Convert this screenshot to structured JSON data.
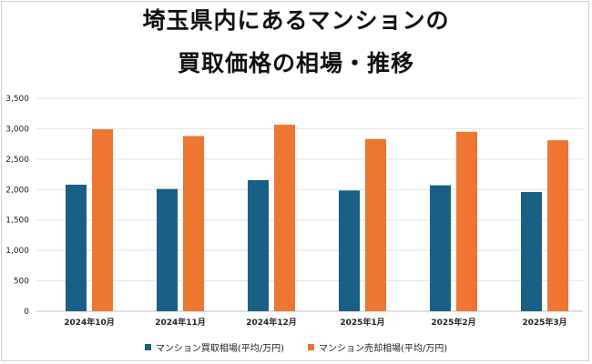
{
  "chart_data": {
    "type": "bar",
    "title_lines": [
      "埼玉県内にあるマンションの",
      "買取価格の相場・推移"
    ],
    "categories": [
      "2024年10月",
      "2024年11月",
      "2024年12月",
      "2025年1月",
      "2025年2月",
      "2025年3月"
    ],
    "series": [
      {
        "name": "マンション買取相場(平均/万円)",
        "color": "#1a5f85",
        "values": [
          2080,
          2010,
          2155,
          1985,
          2070,
          1960
        ]
      },
      {
        "name": "マンション売却相場(平均/万円)",
        "color": "#ee7633",
        "values": [
          2990,
          2880,
          3065,
          2830,
          2950,
          2810
        ]
      }
    ],
    "ylim": [
      0,
      3500
    ],
    "yticks": [
      "0",
      "500",
      "1,000",
      "1,500",
      "2,000",
      "2,500",
      "3,000",
      "3,500"
    ],
    "ytick_values": [
      0,
      500,
      1000,
      1500,
      2000,
      2500,
      3000,
      3500
    ],
    "grid": true,
    "legend_position": "bottom"
  }
}
